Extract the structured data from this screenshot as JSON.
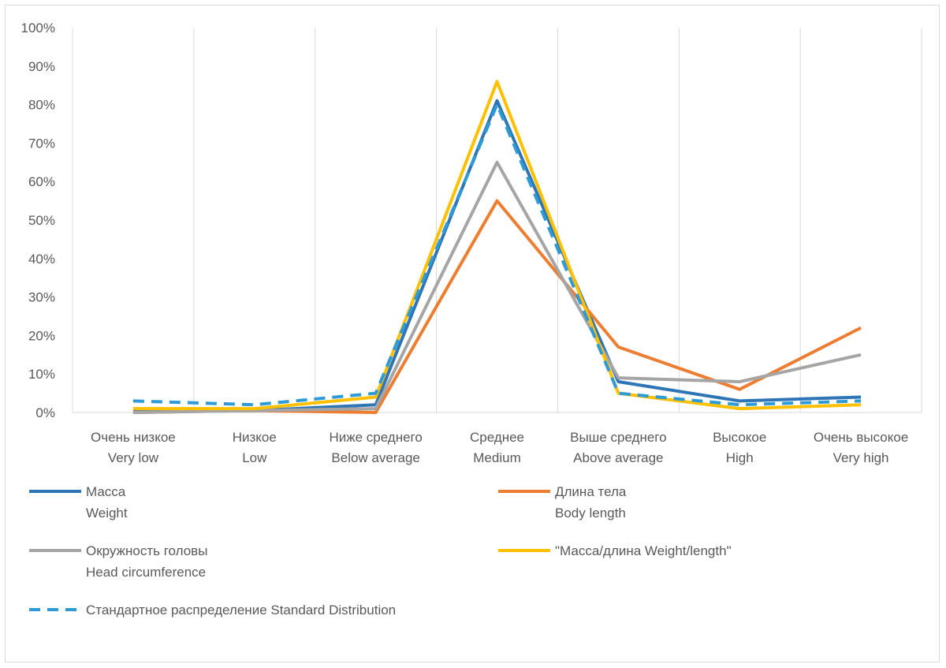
{
  "chart_data": {
    "type": "line",
    "categories": [
      [
        "Очень низкое",
        "Very low"
      ],
      [
        "Низкое",
        "Low"
      ],
      [
        "Ниже среднего",
        "Below average"
      ],
      [
        "Среднее",
        "Medium"
      ],
      [
        "Выше среднего",
        "Above average"
      ],
      [
        "Высокое",
        "High"
      ],
      [
        "Очень высокое",
        "Very high"
      ]
    ],
    "ylim": [
      0,
      100
    ],
    "yticks": [
      0,
      10,
      20,
      30,
      40,
      50,
      60,
      70,
      80,
      90,
      100
    ],
    "ytick_format": "%",
    "grid": "vertical",
    "legend_position": "bottom",
    "series": [
      {
        "name": [
          "Масса",
          "Weight"
        ],
        "color": "#2e75b6",
        "dash": false,
        "values": [
          0.5,
          0.5,
          2,
          81,
          8,
          3,
          4
        ]
      },
      {
        "name": [
          "Длина тела",
          "Body length"
        ],
        "color": "#ed7d31",
        "dash": false,
        "values": [
          0,
          0.5,
          0,
          55,
          17,
          6,
          22
        ]
      },
      {
        "name": [
          "Окружность головы",
          "Head circumference"
        ],
        "color": "#a5a5a5",
        "dash": false,
        "values": [
          0,
          0.5,
          1,
          65,
          9,
          8,
          15
        ]
      },
      {
        "name": [
          "\"Масса/длина Weight/length\""
        ],
        "color": "#ffc000",
        "dash": false,
        "values": [
          1,
          1,
          4,
          86,
          5,
          1,
          2
        ]
      },
      {
        "name": [
          "Стандартное распределение Standard Distribution"
        ],
        "color": "#2e9bd6",
        "dash": true,
        "values": [
          3,
          2,
          5,
          80,
          5,
          2,
          3
        ]
      }
    ]
  }
}
